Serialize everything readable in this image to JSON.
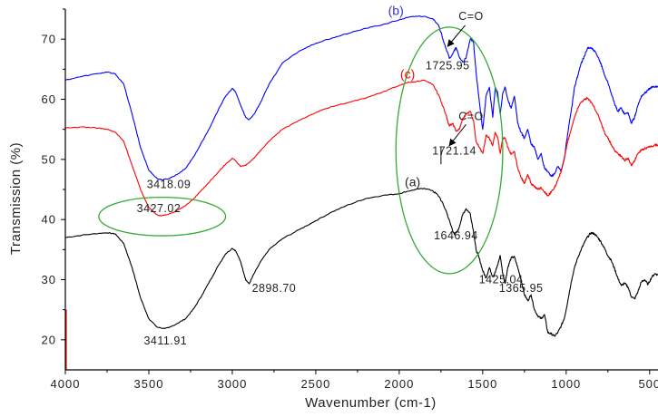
{
  "chart_data": {
    "type": "line",
    "title": "",
    "xlabel": "Wavenumber (cm-1)",
    "ylabel": "Transmission (%)",
    "xlim": [
      4000,
      450
    ],
    "ylim": [
      15,
      75
    ],
    "x_reversed": true,
    "grid": false,
    "legend": "none",
    "x_ticks": [
      4000,
      3500,
      3000,
      2500,
      2000,
      1500,
      1000,
      500
    ],
    "x_tick_labels": [
      "4000",
      "3500",
      "3000",
      "2500",
      "2000",
      "1500",
      "1000",
      "500"
    ],
    "y_ticks": [
      20,
      30,
      40,
      50,
      60,
      70
    ],
    "y_tick_labels": [
      "20",
      "30",
      "40",
      "50",
      "60",
      "70"
    ],
    "series": [
      {
        "name": "(a)",
        "color": "#000000",
        "x": [
          4000,
          3900,
          3800,
          3750,
          3700,
          3650,
          3600,
          3550,
          3500,
          3450,
          3411.91,
          3380,
          3330,
          3280,
          3230,
          3180,
          3130,
          3080,
          3040,
          3000,
          2980,
          2950,
          2920,
          2898.7,
          2870,
          2830,
          2780,
          2700,
          2600,
          2500,
          2400,
          2300,
          2200,
          2100,
          2000,
          1950,
          1900,
          1850,
          1800,
          1760,
          1720,
          1690,
          1670,
          1646.94,
          1620,
          1600,
          1575,
          1555,
          1540,
          1520,
          1500,
          1480,
          1460,
          1440,
          1425.04,
          1410,
          1395,
          1380,
          1365.95,
          1350,
          1330,
          1310,
          1290,
          1270,
          1250,
          1230,
          1210,
          1190,
          1170,
          1150,
          1130,
          1110,
          1090,
          1070,
          1050,
          1030,
          1010,
          990,
          970,
          950,
          930,
          910,
          890,
          870,
          850,
          830,
          810,
          790,
          770,
          750,
          730,
          710,
          690,
          670,
          650,
          630,
          610,
          590,
          570,
          550,
          530,
          510,
          490,
          470,
          450
        ],
        "y": [
          37.0,
          37.4,
          37.7,
          37.8,
          37.6,
          36.0,
          32.0,
          27.0,
          23.5,
          22.1,
          21.9,
          22.0,
          22.7,
          23.5,
          25.2,
          27.5,
          30.0,
          32.5,
          34.3,
          35.2,
          34.8,
          33.0,
          30.0,
          29.3,
          31.0,
          33.0,
          35.0,
          36.8,
          38.3,
          39.8,
          41.3,
          42.5,
          43.5,
          44.0,
          44.3,
          44.7,
          45.0,
          45.2,
          44.8,
          43.8,
          41.5,
          39.0,
          37.5,
          38.2,
          40.8,
          41.8,
          41.0,
          38.0,
          35.0,
          33.5,
          31.5,
          30.3,
          32.0,
          30.5,
          31.2,
          32.5,
          34.0,
          31.0,
          29.4,
          32.0,
          33.6,
          33.8,
          32.0,
          30.0,
          27.5,
          26.5,
          27.5,
          25.0,
          24.0,
          23.5,
          24.2,
          21.2,
          21.0,
          20.6,
          21.2,
          22.3,
          23.7,
          26.5,
          29.6,
          32.0,
          33.7,
          35.0,
          36.2,
          37.2,
          37.8,
          37.6,
          37.0,
          36.2,
          35.2,
          34.0,
          33.2,
          31.8,
          30.2,
          29.0,
          29.4,
          28.8,
          27.2,
          26.8,
          28.0,
          29.6,
          30.0,
          29.2,
          30.3,
          31.0,
          30.8
        ]
      },
      {
        "name": "(b)",
        "color": "#0000ff",
        "x": [
          4000,
          3900,
          3800,
          3750,
          3700,
          3650,
          3600,
          3550,
          3500,
          3450,
          3418.09,
          3380,
          3330,
          3280,
          3230,
          3180,
          3130,
          3080,
          3040,
          3000,
          2980,
          2950,
          2920,
          2900,
          2870,
          2830,
          2780,
          2700,
          2600,
          2500,
          2400,
          2300,
          2200,
          2100,
          2000,
          1950,
          1900,
          1850,
          1800,
          1760,
          1725.95,
          1700,
          1680,
          1660,
          1640,
          1620,
          1600,
          1575,
          1555,
          1540,
          1520,
          1500,
          1480,
          1460,
          1440,
          1425,
          1410,
          1395,
          1380,
          1365,
          1350,
          1330,
          1310,
          1290,
          1270,
          1250,
          1230,
          1210,
          1190,
          1170,
          1150,
          1130,
          1110,
          1090,
          1070,
          1050,
          1030,
          1010,
          990,
          970,
          950,
          930,
          910,
          890,
          870,
          850,
          830,
          810,
          790,
          770,
          750,
          730,
          710,
          690,
          670,
          650,
          630,
          610,
          590,
          570,
          550,
          530,
          510,
          490,
          470,
          450
        ],
        "y": [
          63.2,
          63.8,
          64.3,
          64.5,
          64.2,
          62.5,
          57.5,
          52.0,
          48.2,
          46.8,
          46.6,
          46.8,
          47.5,
          48.5,
          50.5,
          53.0,
          55.5,
          58.5,
          60.5,
          61.8,
          61.2,
          59.0,
          57.0,
          56.6,
          57.5,
          59.5,
          62.5,
          66.0,
          68.0,
          69.3,
          70.2,
          71.0,
          71.8,
          72.4,
          73.2,
          73.6,
          73.8,
          73.8,
          73.4,
          72.0,
          69.0,
          66.8,
          67.5,
          68.6,
          67.0,
          66.2,
          66.8,
          70.0,
          69.5,
          64.5,
          59.5,
          55.0,
          60.5,
          62.0,
          57.0,
          62.0,
          61.0,
          57.5,
          61.0,
          62.0,
          60.0,
          58.5,
          60.5,
          56.0,
          54.5,
          53.5,
          55.0,
          52.5,
          52.0,
          50.0,
          51.0,
          48.5,
          48.0,
          47.2,
          47.6,
          48.8,
          48.0,
          50.3,
          54.5,
          58.0,
          62.0,
          64.0,
          66.0,
          67.2,
          68.6,
          68.5,
          68.0,
          67.0,
          65.8,
          64.0,
          62.8,
          61.0,
          59.2,
          58.0,
          58.6,
          57.5,
          57.8,
          56.0,
          57.0,
          59.0,
          60.5,
          61.0,
          61.5,
          62.0,
          62.0,
          62.2
        ]
      },
      {
        "name": "(c)",
        "color": "#ff0000",
        "x": [
          4000,
          3900,
          3800,
          3750,
          3700,
          3650,
          3600,
          3550,
          3500,
          3450,
          3427.02,
          3380,
          3330,
          3280,
          3230,
          3180,
          3130,
          3080,
          3040,
          3000,
          2980,
          2950,
          2920,
          2900,
          2870,
          2830,
          2780,
          2700,
          2600,
          2500,
          2400,
          2300,
          2200,
          2100,
          2000,
          1950,
          1900,
          1850,
          1800,
          1760,
          1721.14,
          1700,
          1680,
          1660,
          1640,
          1620,
          1600,
          1575,
          1555,
          1540,
          1520,
          1500,
          1480,
          1460,
          1440,
          1425,
          1410,
          1395,
          1380,
          1365,
          1350,
          1330,
          1310,
          1290,
          1270,
          1250,
          1230,
          1210,
          1190,
          1170,
          1150,
          1130,
          1110,
          1090,
          1070,
          1050,
          1030,
          1010,
          990,
          970,
          950,
          930,
          910,
          890,
          870,
          850,
          830,
          810,
          790,
          770,
          750,
          730,
          710,
          690,
          670,
          650,
          630,
          610,
          590,
          570,
          550,
          530,
          510,
          490,
          470,
          450
        ],
        "y": [
          55.2,
          55.4,
          55.2,
          55.0,
          54.5,
          53.0,
          49.0,
          45.0,
          42.0,
          40.8,
          40.6,
          40.9,
          41.5,
          42.3,
          43.5,
          45.0,
          46.5,
          48.0,
          49.2,
          50.2,
          49.8,
          48.8,
          49.0,
          49.5,
          50.2,
          51.5,
          53.0,
          55.0,
          56.5,
          57.8,
          58.8,
          59.5,
          60.2,
          61.2,
          62.3,
          62.8,
          62.9,
          63.2,
          62.5,
          60.5,
          57.5,
          55.5,
          56.0,
          54.7,
          55.0,
          56.8,
          57.5,
          58.0,
          56.5,
          53.0,
          52.0,
          51.0,
          54.0,
          53.5,
          52.3,
          54.5,
          53.5,
          51.0,
          53.5,
          53.5,
          52.0,
          50.8,
          51.3,
          48.5,
          47.0,
          46.0,
          47.5,
          46.0,
          45.5,
          45.0,
          45.3,
          44.6,
          44.0,
          44.5,
          45.3,
          46.5,
          48.0,
          50.5,
          53.0,
          55.0,
          57.0,
          58.5,
          59.5,
          60.0,
          60.2,
          59.5,
          58.5,
          57.5,
          56.0,
          54.5,
          53.5,
          52.5,
          51.5,
          51.0,
          50.5,
          49.8,
          50.2,
          49.0,
          49.8,
          51.0,
          51.5,
          51.8,
          52.0,
          52.2,
          52.4,
          52.4
        ]
      }
    ],
    "series_labels": [
      {
        "text": "(a)",
        "x": 1920,
        "y": 45.5,
        "color": "#222222"
      },
      {
        "text": "(b)",
        "x": 2020,
        "y": 74.0,
        "color": "#3333cc"
      },
      {
        "text": "(c)",
        "x": 1950,
        "y": 63.5,
        "color": "#ff0000"
      }
    ],
    "annotations": [
      {
        "text": "3411.91",
        "x": 3400,
        "y": 19.2
      },
      {
        "text": "2898.70",
        "x": 2750,
        "y": 28.0
      },
      {
        "text": "3418.09",
        "x": 3380,
        "y": 45.2
      },
      {
        "text": "3427.02",
        "x": 3440,
        "y": 41.2
      },
      {
        "text": "1725.95",
        "x": 1710,
        "y": 65.0
      },
      {
        "text": "1721.14",
        "x": 1670,
        "y": 50.8
      },
      {
        "text": "1646.94",
        "x": 1660,
        "y": 36.7
      },
      {
        "text": "1425.04",
        "x": 1390,
        "y": 29.4
      },
      {
        "text": "1365.95",
        "x": 1270,
        "y": 28.0
      },
      {
        "text": "C=O",
        "x": 1570,
        "y": 73.2
      },
      {
        "text": "C=O",
        "x": 1570,
        "y": 56.5
      }
    ],
    "arrows": [
      {
        "from": [
          1605,
          72.3
        ],
        "to": [
          1710,
          68.8
        ]
      },
      {
        "from": [
          1600,
          55.8
        ],
        "to": [
          1700,
          52.3
        ]
      }
    ],
    "callout_lines": [
      {
        "from": [
          1750,
          52.0
        ],
        "to": [
          1750,
          49.2
        ]
      }
    ],
    "ellipses": [
      {
        "cx": 3420,
        "cy": 40.5,
        "rx": 380,
        "ry": 3.2,
        "color": "#33aa33"
      },
      {
        "cx": 1700,
        "cy": 51.5,
        "rx": 320,
        "ry": 20.5,
        "color": "#33aa33"
      }
    ]
  }
}
